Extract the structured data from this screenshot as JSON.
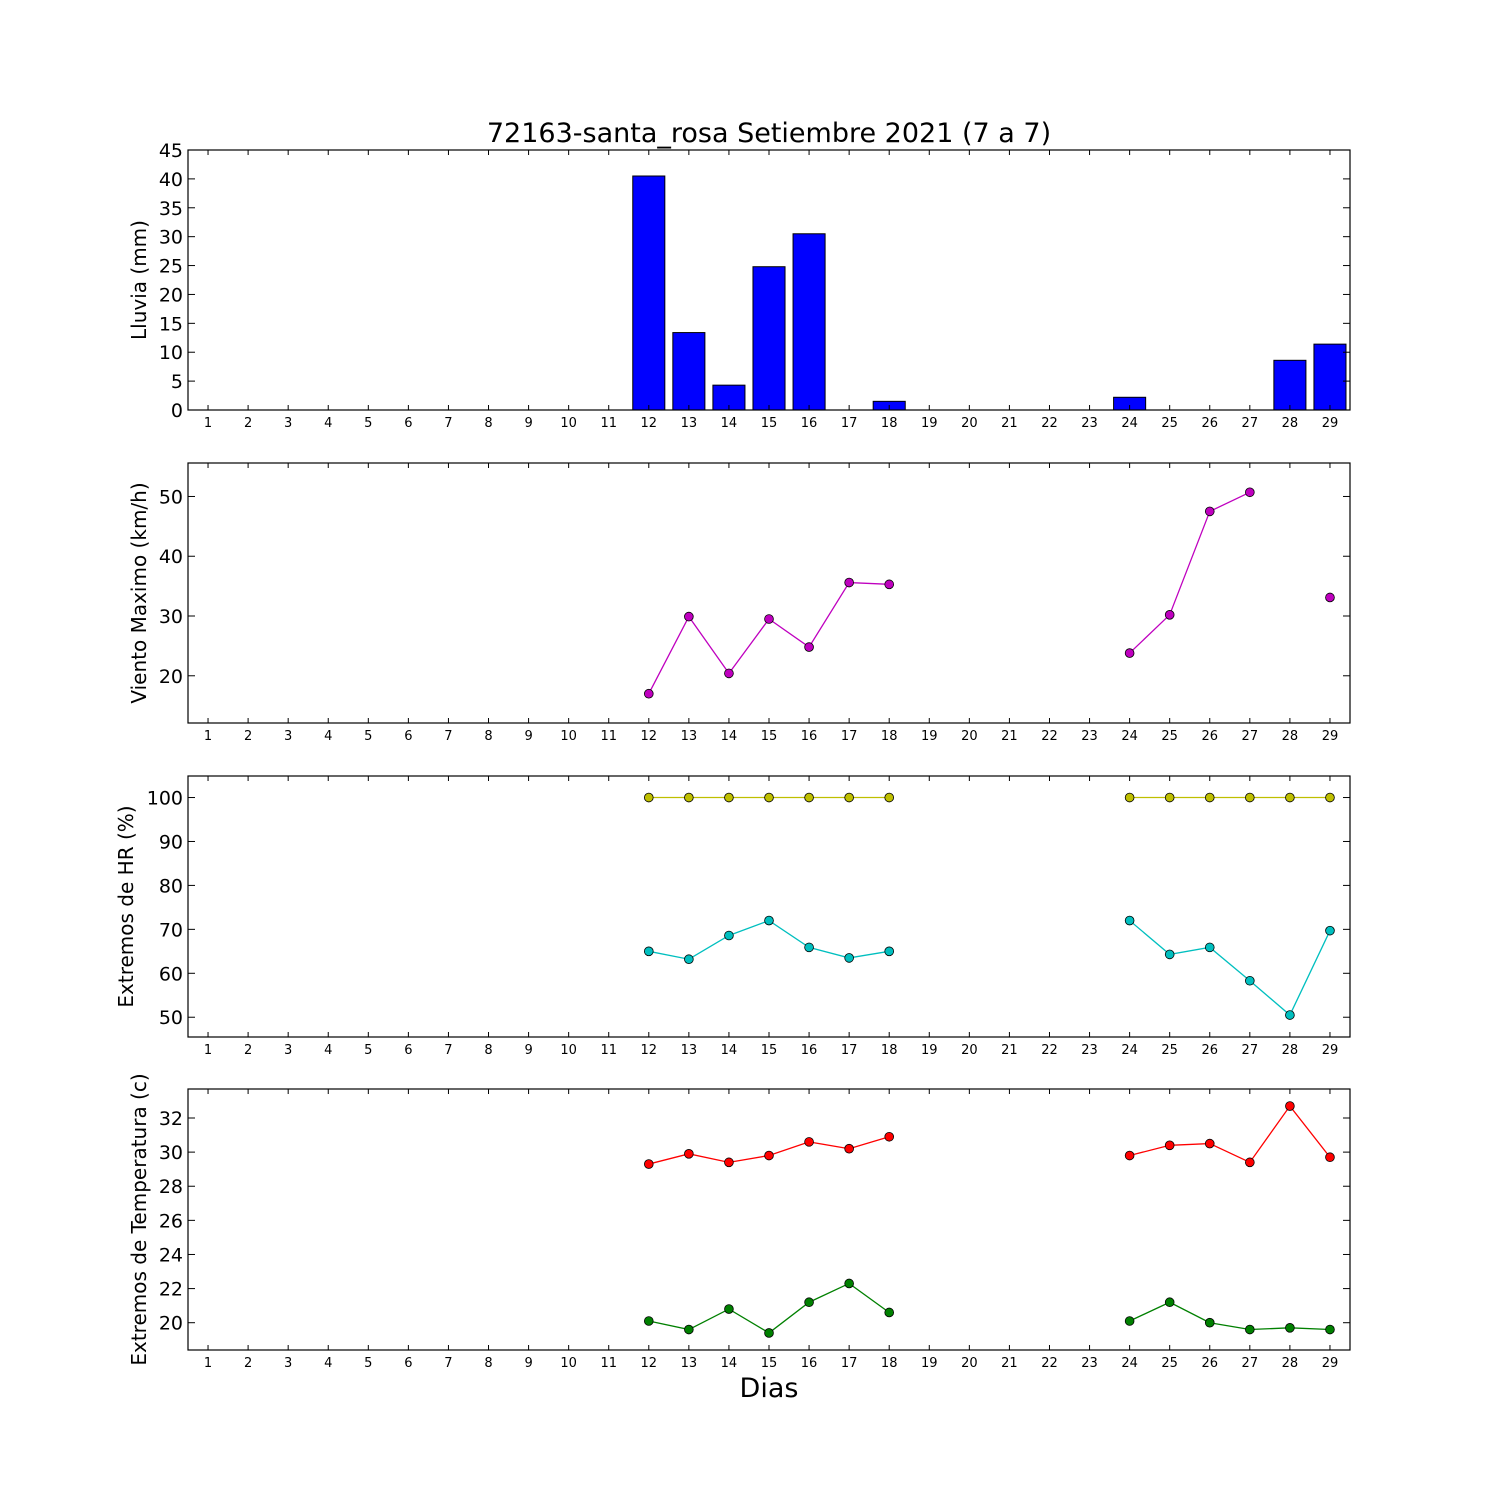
{
  "figure": {
    "title": "72163-santa_rosa Setiembre 2021  (7 a 7)",
    "xlabel": "Dias"
  },
  "chart_data": [
    {
      "type": "bar",
      "id": "rain",
      "ylabel": "Lluvia (mm)",
      "ylim": [
        0,
        45
      ],
      "yticks": [
        0,
        5,
        10,
        15,
        20,
        25,
        30,
        35,
        40,
        45
      ],
      "xlim": [
        0.5,
        29.5
      ],
      "xticks": [
        1,
        2,
        3,
        4,
        5,
        6,
        7,
        8,
        9,
        10,
        11,
        12,
        13,
        14,
        15,
        16,
        17,
        18,
        19,
        20,
        21,
        22,
        23,
        24,
        25,
        26,
        27,
        28,
        29
      ],
      "grid": false,
      "series": [
        {
          "color": "#0000ff",
          "points": [
            [
              12,
              40.5
            ],
            [
              13,
              13.4
            ],
            [
              14,
              4.3
            ],
            [
              15,
              24.8
            ],
            [
              16,
              30.5
            ],
            [
              17,
              0
            ],
            [
              18,
              1.5
            ],
            [
              24,
              2.2
            ],
            [
              25,
              0
            ],
            [
              26,
              0
            ],
            [
              27,
              0
            ],
            [
              28,
              8.6
            ],
            [
              29,
              11.4
            ]
          ]
        }
      ]
    },
    {
      "type": "line",
      "id": "wind",
      "ylabel": "Viento Maximo (km/h)",
      "ylim": [
        12.1,
        55.6
      ],
      "yticks": [
        20,
        30,
        40,
        50
      ],
      "xlim": [
        0.5,
        29.5
      ],
      "xticks": [
        1,
        2,
        3,
        4,
        5,
        6,
        7,
        8,
        9,
        10,
        11,
        12,
        13,
        14,
        15,
        16,
        17,
        18,
        19,
        20,
        21,
        22,
        23,
        24,
        25,
        26,
        27,
        28,
        29
      ],
      "grid": false,
      "series": [
        {
          "color": "#bf00bf",
          "segments": [
            [
              [
                12,
                17.0
              ],
              [
                13,
                29.9
              ],
              [
                14,
                20.4
              ],
              [
                15,
                29.5
              ],
              [
                16,
                24.8
              ],
              [
                17,
                35.6
              ],
              [
                18,
                35.3
              ]
            ],
            [
              [
                24,
                23.8
              ],
              [
                25,
                30.2
              ],
              [
                26,
                47.5
              ],
              [
                27,
                50.7
              ]
            ],
            [
              [
                29,
                33.1
              ]
            ]
          ]
        }
      ]
    },
    {
      "type": "line",
      "id": "humidity",
      "ylabel": "Extremos de HR (%)",
      "ylim": [
        45.5,
        104.9
      ],
      "yticks": [
        50,
        60,
        70,
        80,
        90,
        100
      ],
      "xlim": [
        0.5,
        29.5
      ],
      "xticks": [
        1,
        2,
        3,
        4,
        5,
        6,
        7,
        8,
        9,
        10,
        11,
        12,
        13,
        14,
        15,
        16,
        17,
        18,
        19,
        20,
        21,
        22,
        23,
        24,
        25,
        26,
        27,
        28,
        29
      ],
      "grid": false,
      "series": [
        {
          "color": "#bfbf00",
          "segments": [
            [
              [
                12,
                100
              ],
              [
                13,
                100
              ],
              [
                14,
                100
              ],
              [
                15,
                100
              ],
              [
                16,
                100
              ],
              [
                17,
                100
              ],
              [
                18,
                100
              ]
            ],
            [
              [
                24,
                100
              ],
              [
                25,
                100
              ],
              [
                26,
                100
              ],
              [
                27,
                100
              ],
              [
                28,
                100
              ],
              [
                29,
                100
              ]
            ]
          ]
        },
        {
          "color": "#00bfbf",
          "segments": [
            [
              [
                12,
                65.0
              ],
              [
                13,
                63.2
              ],
              [
                14,
                68.6
              ],
              [
                15,
                72.0
              ],
              [
                16,
                65.9
              ],
              [
                17,
                63.5
              ],
              [
                18,
                65.0
              ]
            ],
            [
              [
                24,
                72.0
              ],
              [
                25,
                64.3
              ],
              [
                26,
                65.9
              ],
              [
                27,
                58.3
              ],
              [
                28,
                50.5
              ],
              [
                29,
                69.7
              ]
            ]
          ]
        }
      ]
    },
    {
      "type": "line",
      "id": "temperature",
      "ylabel": "Extremos de Temperatura (c)",
      "ylim": [
        18.4,
        33.7
      ],
      "yticks": [
        20,
        22,
        24,
        26,
        28,
        30,
        32
      ],
      "xlim": [
        0.5,
        29.5
      ],
      "xticks": [
        1,
        2,
        3,
        4,
        5,
        6,
        7,
        8,
        9,
        10,
        11,
        12,
        13,
        14,
        15,
        16,
        17,
        18,
        19,
        20,
        21,
        22,
        23,
        24,
        25,
        26,
        27,
        28,
        29
      ],
      "grid": false,
      "series": [
        {
          "color": "#ff0000",
          "segments": [
            [
              [
                12,
                29.3
              ],
              [
                13,
                29.9
              ],
              [
                14,
                29.4
              ],
              [
                15,
                29.8
              ],
              [
                16,
                30.6
              ],
              [
                17,
                30.2
              ],
              [
                18,
                30.9
              ]
            ],
            [
              [
                24,
                29.8
              ],
              [
                25,
                30.4
              ],
              [
                26,
                30.5
              ],
              [
                27,
                29.4
              ],
              [
                28,
                32.7
              ],
              [
                29,
                29.7
              ]
            ]
          ]
        },
        {
          "color": "#008000",
          "segments": [
            [
              [
                12,
                20.1
              ],
              [
                13,
                19.6
              ],
              [
                14,
                20.8
              ],
              [
                15,
                19.4
              ],
              [
                16,
                21.2
              ],
              [
                17,
                22.3
              ],
              [
                18,
                20.6
              ]
            ],
            [
              [
                24,
                20.1
              ],
              [
                25,
                21.2
              ],
              [
                26,
                20.0
              ],
              [
                27,
                19.6
              ],
              [
                28,
                19.7
              ],
              [
                29,
                19.6
              ]
            ]
          ]
        }
      ]
    }
  ]
}
